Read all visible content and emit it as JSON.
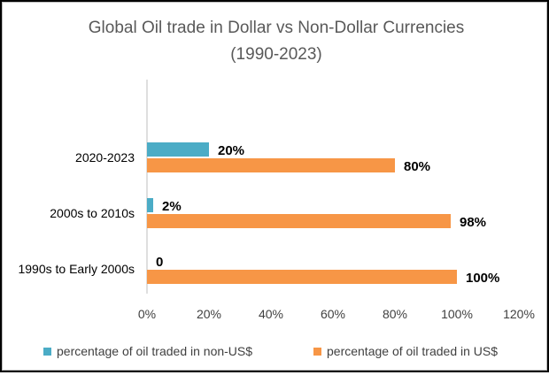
{
  "chart_data": {
    "type": "bar",
    "orientation": "horizontal",
    "title": [
      "Global Oil trade in Dollar vs Non-Dollar Currencies",
      "(1990-2023)"
    ],
    "categories": [
      "1990s to Early 2000s",
      "2000s to 2010s",
      "2020-2023"
    ],
    "series": [
      {
        "name": "percentage of oil traded in non-US$",
        "color": "#4BACC6",
        "values": [
          0,
          2,
          20
        ],
        "labels": [
          "0",
          "2%",
          "20%"
        ]
      },
      {
        "name": "percentage of oil traded in US$",
        "color": "#F79646",
        "values": [
          100,
          98,
          80
        ],
        "labels": [
          "100%",
          "98%",
          "80%"
        ]
      }
    ],
    "xlim": [
      0,
      120
    ],
    "x_ticks": [
      0,
      20,
      40,
      60,
      80,
      100,
      120
    ],
    "x_tick_labels": [
      "0%",
      "20%",
      "40%",
      "60%",
      "80%",
      "100%",
      "120%"
    ],
    "grid": false,
    "legend_position": "bottom"
  }
}
